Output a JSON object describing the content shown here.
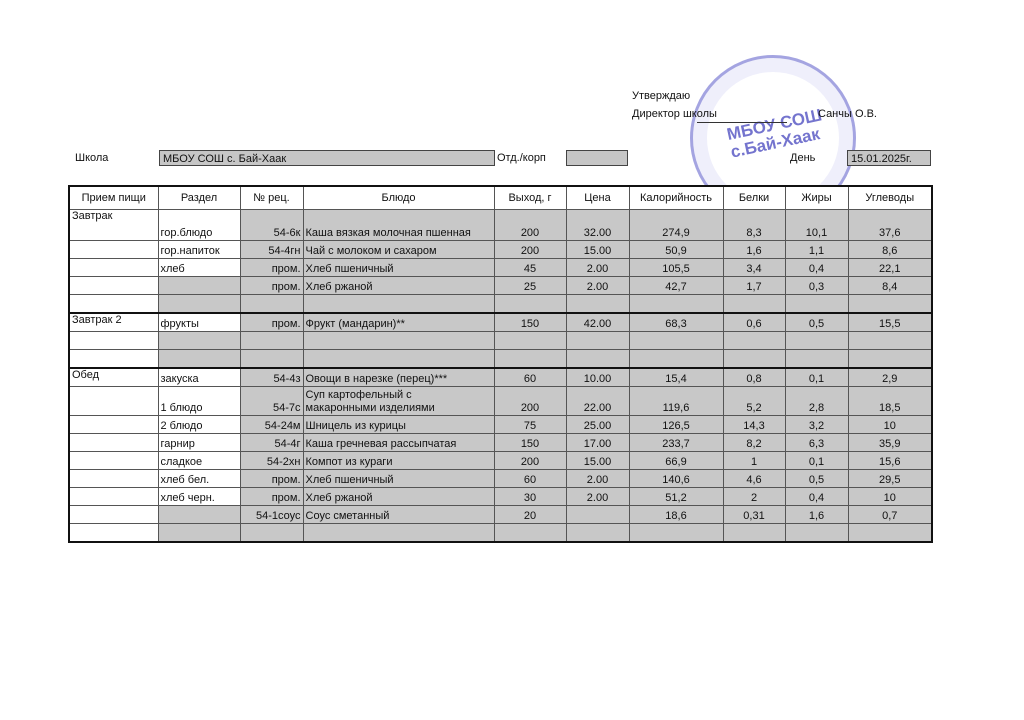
{
  "approval": {
    "line1": "Утверждаю",
    "line2": "Директор школы",
    "name": "Санчы О.В.",
    "stamp_text": "МБОУ СОШ\nс.Бай-Хаак",
    "signature": "Санч"
  },
  "header": {
    "school_label": "Школа",
    "school": "МБОУ СОШ с. Бай-Хаак",
    "dept_label": "Отд./корп",
    "dept": "",
    "day_label": "День",
    "day": "15.01.2025г."
  },
  "columns": [
    "Прием пищи",
    "Раздел",
    "№ рец.",
    "Блюдо",
    "Выход, г",
    "Цена",
    "Калорийность",
    "Белки",
    "Жиры",
    "Углеводы"
  ],
  "rows": [
    [
      "Завтрак",
      "гор.блюдо",
      "54-6к",
      "Каша вязкая молочная пшенная",
      "200",
      "32.00",
      "274,9",
      "8,3",
      "10,1",
      "37,6"
    ],
    [
      "",
      "гор.напиток",
      "54-4гн",
      "Чай с молоком и сахаром",
      "200",
      "15.00",
      "50,9",
      "1,6",
      "1,1",
      "8,6"
    ],
    [
      "",
      "хлеб",
      "пром.",
      "Хлеб пшеничный",
      "45",
      "2.00",
      "105,5",
      "3,4",
      "0,4",
      "22,1"
    ],
    [
      "",
      "",
      "пром.",
      "Хлеб ржаной",
      "25",
      "2.00",
      "42,7",
      "1,7",
      "0,3",
      "8,4"
    ],
    [
      "",
      "",
      "",
      "",
      "",
      "",
      "",
      "",
      "",
      ""
    ],
    [
      "Завтрак 2",
      "фрукты",
      "пром.",
      "Фрукт (мандарин)**",
      "150",
      "42.00",
      "68,3",
      "0,6",
      "0,5",
      "15,5"
    ],
    [
      "",
      "",
      "",
      "",
      "",
      "",
      "",
      "",
      "",
      ""
    ],
    [
      "",
      "",
      "",
      "",
      "",
      "",
      "",
      "",
      "",
      ""
    ],
    [
      "Обед",
      "закуска",
      "54-4з",
      "Овощи в нарезке (перец)***",
      "60",
      "10.00",
      "15,4",
      "0,8",
      "0,1",
      "2,9"
    ],
    [
      "",
      "1 блюдо",
      "54-7с",
      "Суп картофельный с\nмакаронными изделиями",
      "200",
      "22.00",
      "119,6",
      "5,2",
      "2,8",
      "18,5"
    ],
    [
      "",
      "2 блюдо",
      "54-24м",
      "Шницель из курицы",
      "75",
      "25.00",
      "126,5",
      "14,3",
      "3,2",
      "10"
    ],
    [
      "",
      "гарнир",
      "54-4г",
      "Каша гречневая рассыпчатая",
      "150",
      "17.00",
      "233,7",
      "8,2",
      "6,3",
      "35,9"
    ],
    [
      "",
      "сладкое",
      "54-2хн",
      "Компот из кураги",
      "200",
      "15.00",
      "66,9",
      "1",
      "0,1",
      "15,6"
    ],
    [
      "",
      "хлеб бел.",
      "пром.",
      "Хлеб пшеничный",
      "60",
      "2.00",
      "140,6",
      "4,6",
      "0,5",
      "29,5"
    ],
    [
      "",
      "хлеб черн.",
      "пром.",
      "Хлеб ржаной",
      "30",
      "2.00",
      "51,2",
      "2",
      "0,4",
      "10"
    ],
    [
      "",
      "",
      "54-1соус",
      "Соус сметанный",
      "20",
      "",
      "18,6",
      "0,31",
      "1,6",
      "0,7"
    ],
    [
      "",
      "",
      "",
      "",
      "",
      "",
      "",
      "",
      "",
      ""
    ]
  ]
}
